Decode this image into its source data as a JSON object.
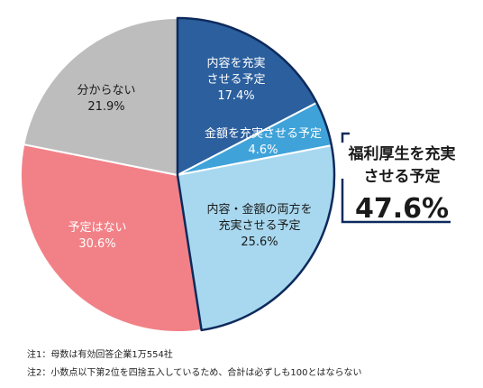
{
  "chart_data": {
    "type": "pie",
    "slices": [
      {
        "label_lines": [
          "内容を充実",
          "させる予定"
        ],
        "value": 17.4,
        "value_label": "17.4%",
        "color": "#2b5f9e",
        "text_color": "#ffffff"
      },
      {
        "label_lines": [
          "金額を充実させる予定"
        ],
        "value": 4.6,
        "value_label": "4.6%",
        "color": "#3fa3d9",
        "text_color": "#ffffff"
      },
      {
        "label_lines": [
          "内容・金額の両方を",
          "充実させる予定"
        ],
        "value": 25.6,
        "value_label": "25.6%",
        "color": "#a8d8ef",
        "text_color": "#1a1a1a"
      },
      {
        "label_lines": [
          "予定はない"
        ],
        "value": 30.6,
        "value_label": "30.6%",
        "color": "#f28187",
        "text_color": "#ffffff"
      },
      {
        "label_lines": [
          "分からない"
        ],
        "value": 21.9,
        "value_label": "21.9%",
        "color": "#bdbdbd",
        "text_color": "#1a1a1a"
      }
    ],
    "group_callout": {
      "label_lines": [
        "福利厚生を充実",
        "させる予定"
      ],
      "value_label": "47.6%",
      "outline_color": "#0d2a5c"
    }
  },
  "notes": [
    "注1：母数は有効回答企業1万554社",
    "注2：小数点以下第2位を四捨五入しているため、合計は必ずしも100とはならない"
  ]
}
